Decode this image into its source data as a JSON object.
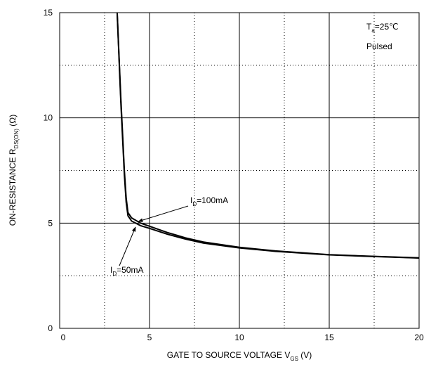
{
  "chart_data": {
    "type": "line",
    "x_label": {
      "main": "GATE TO SOURCE VOLTAGE   V",
      "sub": "GS",
      "rest": "   (V)"
    },
    "y_label": {
      "main": "ON-RESISTANCE   R",
      "sub": "DS(ON)",
      "rest": "   (Ω)"
    },
    "xlim": [
      0,
      20
    ],
    "ylim": [
      0,
      15
    ],
    "xticks": [
      0,
      5,
      10,
      15,
      20
    ],
    "yticks": [
      0,
      5,
      10,
      15
    ],
    "minor_xgrid": [
      2.5,
      7.5,
      12.5,
      17.5
    ],
    "minor_ygrid": [
      2.5,
      7.5,
      12.5
    ],
    "grid": true,
    "conditions": [
      {
        "main": "T",
        "sub": "a",
        "rest": "=25℃"
      },
      {
        "main": "Pulsed"
      }
    ],
    "series": [
      {
        "label": {
          "main": "I",
          "sub": "D",
          "rest": "=100mA"
        },
        "color": "#000000",
        "x": [
          3.2,
          3.4,
          3.6,
          3.7,
          3.8,
          4.0,
          4.5,
          5,
          6,
          7,
          8,
          10,
          12,
          15,
          17.5,
          20
        ],
        "values": [
          15,
          11,
          7.5,
          6.2,
          5.5,
          5.25,
          5.0,
          4.85,
          4.55,
          4.3,
          4.1,
          3.85,
          3.68,
          3.5,
          3.42,
          3.35
        ]
      },
      {
        "label": {
          "main": "I",
          "sub": "D",
          "rest": "=50mA"
        },
        "color": "#000000",
        "x": [
          3.2,
          3.4,
          3.6,
          3.7,
          3.8,
          4.0,
          4.5,
          5,
          6,
          7,
          8,
          10,
          12,
          15,
          17.5,
          20
        ],
        "values": [
          15,
          10.8,
          7.3,
          6.0,
          5.35,
          5.1,
          4.88,
          4.75,
          4.47,
          4.24,
          4.05,
          3.82,
          3.66,
          3.49,
          3.41,
          3.34
        ]
      }
    ]
  }
}
